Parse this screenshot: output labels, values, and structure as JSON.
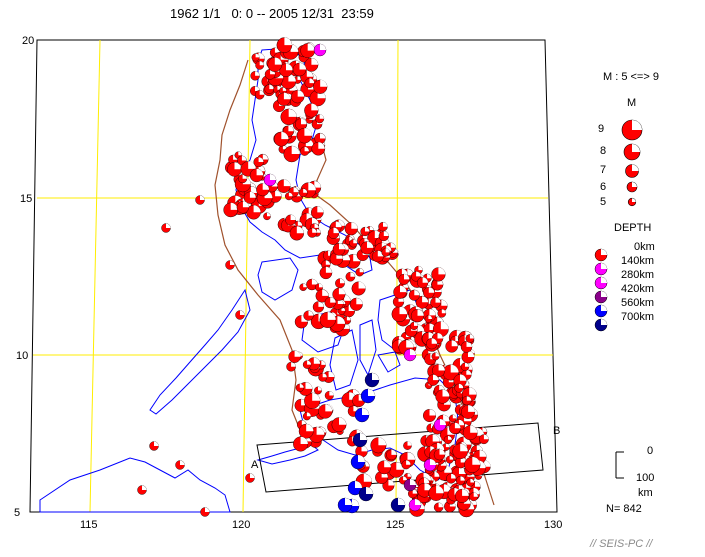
{
  "title": "1962 1/1   0: 0 -- 2005 12/31  23:59",
  "map": {
    "lat_ticks": [
      "20",
      "15",
      "10",
      "5"
    ],
    "lon_ticks": [
      "115",
      "120",
      "125",
      "130"
    ],
    "colors": {
      "grid": "#ffee00",
      "coast": "#0000ff",
      "trench": "#a0522d",
      "frame": "#000000"
    },
    "profile": {
      "start_label": "A",
      "end_label": "B"
    }
  },
  "legend": {
    "magnitude_range": "M : 5 <=> 9",
    "magnitude_header": "M",
    "magnitudes": [
      "9",
      "8",
      "7",
      "6",
      "5"
    ],
    "depth_header": "DEPTH",
    "depths": [
      {
        "label": "0km",
        "color": "#ff0000"
      },
      {
        "label": "140km",
        "color": "#ff00ff"
      },
      {
        "label": "280km",
        "color": "#ff00ff"
      },
      {
        "label": "420km",
        "color": "#8b008b"
      },
      {
        "label": "560km",
        "color": "#0000ff"
      },
      {
        "label": "700km",
        "color": "#00008b"
      }
    ],
    "scale_top": "0",
    "scale_mid": "100",
    "scale_unit": "km",
    "count": "N= 842"
  },
  "footer": "// SEIS-PC //"
}
